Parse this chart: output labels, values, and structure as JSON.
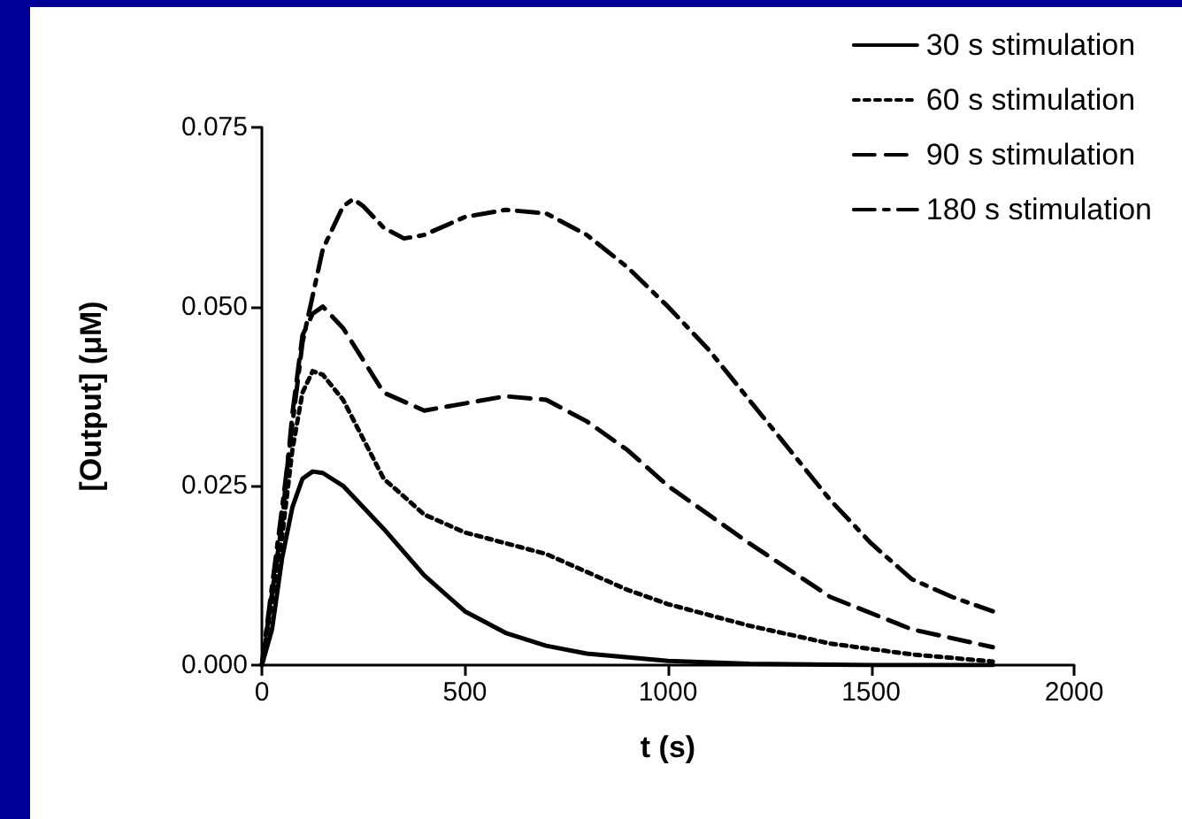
{
  "chart_data": {
    "type": "line",
    "xlabel": "t (s)",
    "ylabel": "[Output] (μM)",
    "xlim": [
      0,
      2000
    ],
    "xticks": [
      0,
      500,
      1000,
      1500,
      2000
    ],
    "ylim": [
      0,
      0.075
    ],
    "yticks": [
      {
        "value": 0,
        "label": "0.000"
      },
      {
        "value": 0.025,
        "label": "0.025"
      },
      {
        "value": 0.05,
        "label": "0.050"
      },
      {
        "value": 0.075,
        "label": "0.075"
      }
    ],
    "grid": false,
    "legend": "top right",
    "marker": "none",
    "series": [
      {
        "name": "30 s stimulation",
        "color": "#000000",
        "line_style": "solid",
        "x": [
          0,
          25,
          50,
          75,
          100,
          125,
          150,
          200,
          300,
          400,
          500,
          600,
          700,
          800,
          1000,
          1200,
          1500,
          1800
        ],
        "values": [
          0,
          0.005,
          0.015,
          0.022,
          0.026,
          0.027,
          0.0268,
          0.025,
          0.019,
          0.0125,
          0.0075,
          0.0045,
          0.0027,
          0.0016,
          0.0006,
          0.0002,
          0,
          0
        ]
      },
      {
        "name": "60 s stimulation",
        "color": "#000000",
        "line_style": "dotted",
        "x": [
          0,
          50,
          75,
          100,
          125,
          150,
          200,
          300,
          400,
          500,
          600,
          700,
          800,
          900,
          1000,
          1200,
          1400,
          1600,
          1800
        ],
        "values": [
          0,
          0.018,
          0.03,
          0.038,
          0.041,
          0.0405,
          0.037,
          0.026,
          0.021,
          0.0185,
          0.017,
          0.0155,
          0.013,
          0.0105,
          0.0085,
          0.0055,
          0.003,
          0.0015,
          0.0005
        ]
      },
      {
        "name": "90 s stimulation",
        "color": "#000000",
        "line_style": "dashed",
        "x": [
          0,
          50,
          75,
          100,
          125,
          150,
          200,
          300,
          400,
          500,
          600,
          700,
          800,
          900,
          1000,
          1200,
          1400,
          1600,
          1800
        ],
        "values": [
          0,
          0.02,
          0.035,
          0.046,
          0.049,
          0.05,
          0.047,
          0.038,
          0.0355,
          0.0365,
          0.0375,
          0.037,
          0.034,
          0.03,
          0.025,
          0.017,
          0.0095,
          0.005,
          0.0025
        ]
      },
      {
        "name": "180 s stimulation",
        "color": "#000000",
        "line_style": "dashdot",
        "x": [
          0,
          50,
          100,
          150,
          200,
          225,
          250,
          300,
          350,
          400,
          500,
          600,
          700,
          800,
          900,
          1000,
          1100,
          1200,
          1300,
          1400,
          1500,
          1600,
          1700,
          1800
        ],
        "values": [
          0,
          0.022,
          0.045,
          0.058,
          0.064,
          0.065,
          0.064,
          0.061,
          0.0595,
          0.06,
          0.0625,
          0.0635,
          0.063,
          0.06,
          0.0555,
          0.05,
          0.044,
          0.037,
          0.03,
          0.023,
          0.017,
          0.012,
          0.0095,
          0.0075
        ]
      }
    ]
  }
}
